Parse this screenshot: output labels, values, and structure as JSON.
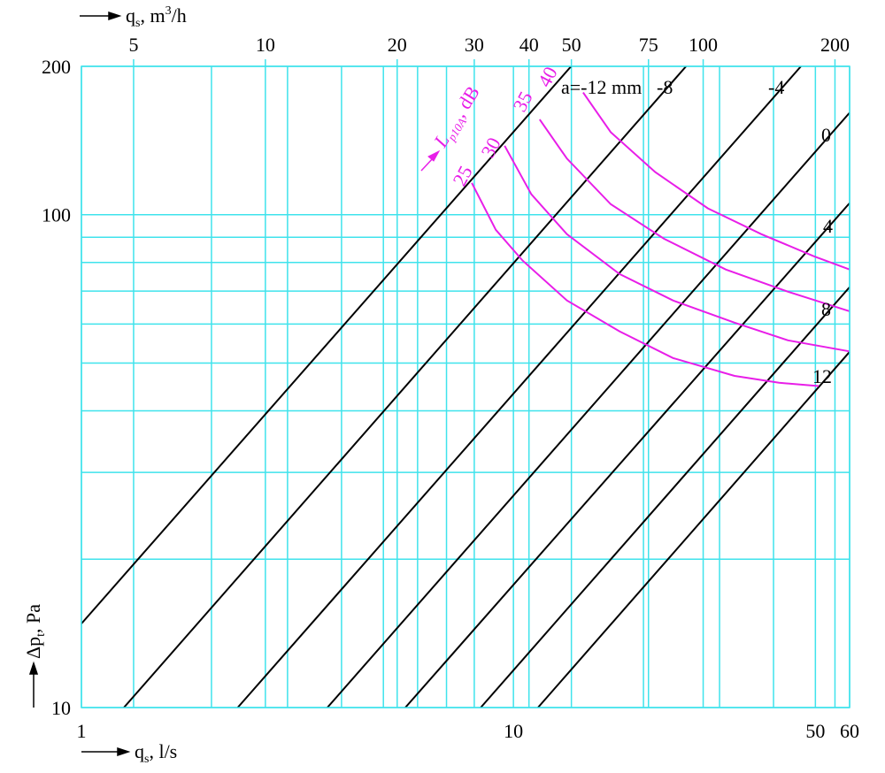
{
  "chart_data": {
    "type": "line",
    "x_label": {
      "symbol": "q",
      "subscript": "s",
      "unit": ", l/s"
    },
    "x2_label": {
      "symbol": "q",
      "subscript": "s",
      "unit": ", m",
      "unit_sup": "3",
      "unit_end": "/h"
    },
    "y_label": {
      "symbol": "Δp",
      "subscript": "t",
      "unit": ", Pa"
    },
    "noise_label": {
      "symbol": "L",
      "subscript": "p10A",
      "unit": ", dB"
    },
    "x_log": true,
    "y_log": true,
    "grid": true,
    "grid_color": "#3fe3ec",
    "xlim": [
      1,
      60
    ],
    "xticks": [
      1,
      10,
      50,
      60
    ],
    "xgrid": [
      2,
      3,
      4,
      5,
      6,
      7,
      20,
      30,
      40
    ],
    "x2lim": [
      3.8,
      216
    ],
    "x2ticks": [
      5,
      10,
      20,
      30,
      40,
      50,
      75,
      100,
      200
    ],
    "ylim": [
      10,
      200
    ],
    "yticks": [
      10,
      100,
      200
    ],
    "ygrid": [
      20,
      30,
      40,
      50,
      60,
      70,
      80,
      90
    ],
    "series": [
      {
        "name": "a=-12 mm",
        "color": "#000000",
        "x": [
          1,
          13.6
        ],
        "values": [
          14.8,
          200
        ]
      },
      {
        "name": "-8",
        "color": "#000000",
        "x": [
          1.254,
          25.1
        ],
        "values": [
          10,
          200
        ]
      },
      {
        "name": "-4",
        "color": "#000000",
        "x": [
          2.3,
          46.3
        ],
        "values": [
          10,
          200
        ]
      },
      {
        "name": "0",
        "color": "#000000",
        "x": [
          3.71,
          60
        ],
        "values": [
          10,
          161
        ]
      },
      {
        "name": "4",
        "color": "#000000",
        "x": [
          5.62,
          60
        ],
        "values": [
          10,
          105.6
        ]
      },
      {
        "name": "8",
        "color": "#000000",
        "x": [
          8.4,
          60
        ],
        "values": [
          10,
          71.3
        ]
      },
      {
        "name": "12",
        "color": "#000000",
        "x": [
          11.4,
          60
        ],
        "values": [
          10,
          52.7
        ]
      }
    ],
    "noise_series": [
      {
        "name": "25",
        "color": "#e81ee8",
        "x": [
          8.01,
          9.1,
          10.5,
          13.3,
          17.6,
          23.4,
          32.5,
          41.2,
          50.9
        ],
        "values": [
          116,
          93.2,
          80.7,
          67,
          58,
          51.2,
          47.1,
          45.6,
          44.9
        ]
      },
      {
        "name": "30",
        "color": "#e81ee8",
        "x": [
          9.54,
          11,
          13.3,
          17.6,
          23.4,
          32.5,
          43.2,
          60
        ],
        "values": [
          138,
          110,
          91.3,
          75.8,
          67,
          60.4,
          55.6,
          52.8
        ]
      },
      {
        "name": "35",
        "color": "#e81ee8",
        "x": [
          11.5,
          13.3,
          16.8,
          22.3,
          31,
          43.2,
          60
        ],
        "values": [
          156,
          130,
          105,
          89.4,
          77.4,
          69.8,
          63.7
        ]
      },
      {
        "name": "40",
        "color": "#e81ee8",
        "x": [
          14.5,
          16.8,
          21.3,
          28.2,
          37.5,
          49.7,
          60
        ],
        "values": [
          177,
          147,
          122,
          103,
          91.3,
          82.3,
          77.4
        ]
      }
    ]
  }
}
